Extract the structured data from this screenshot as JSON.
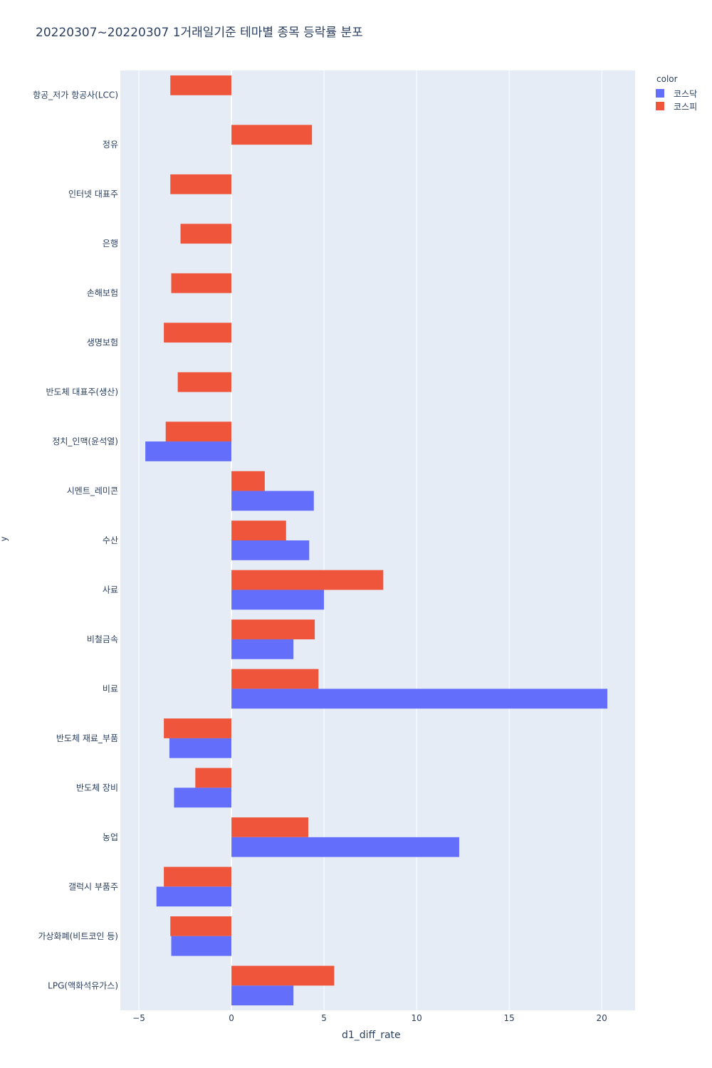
{
  "chart_data": {
    "type": "bar",
    "orientation": "horizontal",
    "title": "20220307~20220307 1거래일기준 테마별 종목 등락률 분포",
    "xlabel": "d1_diff_rate",
    "ylabel": "y",
    "xlim": [
      -6,
      21.8
    ],
    "xticks": [
      -5,
      0,
      5,
      10,
      15,
      20
    ],
    "legend_title": "color",
    "legend_placement": "top-right",
    "categories": [
      "항공_저가 항공사(LCC)",
      "정유",
      "인터넷 대표주",
      "은행",
      "손해보험",
      "생명보험",
      "반도체 대표주(생산)",
      "정치_인맥(윤석열)",
      "시멘트_레미콘",
      "수산",
      "사료",
      "비철금속",
      "비료",
      "반도체 재료_부품",
      "반도체 장비",
      "농업",
      "갤럭시 부품주",
      "가상화폐(비트코인 등)",
      "LPG(액화석유가스)"
    ],
    "series": [
      {
        "name": "코스닥",
        "color": "#636efa",
        "values": [
          null,
          null,
          null,
          null,
          null,
          null,
          null,
          -4.65,
          4.45,
          4.2,
          5.0,
          3.35,
          20.3,
          -3.35,
          -3.1,
          12.3,
          -4.05,
          -3.25,
          3.35
        ]
      },
      {
        "name": "코스피",
        "color": "#ef553b",
        "values": [
          -3.3,
          4.35,
          -3.3,
          -2.75,
          -3.25,
          -3.65,
          -2.9,
          -3.55,
          1.8,
          2.95,
          8.2,
          4.5,
          4.7,
          -3.65,
          -1.95,
          4.15,
          -3.65,
          -3.3,
          5.55
        ]
      }
    ]
  },
  "colors": {
    "plot_bg": "#e5ecf6",
    "grid": "#ffffff",
    "text": "#2a3f5f"
  }
}
